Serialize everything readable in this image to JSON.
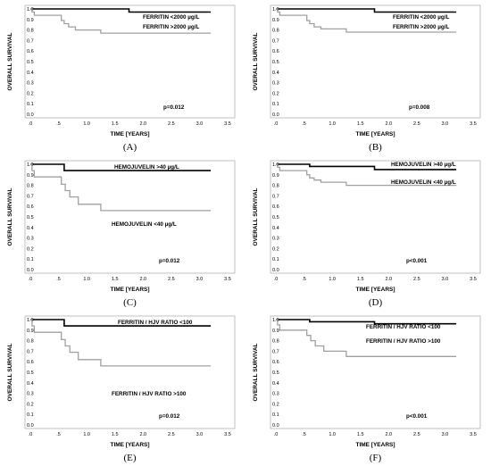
{
  "panels": [
    {
      "id": "A",
      "caption": "(A)",
      "p_value": "p=0.012"
    },
    {
      "id": "B",
      "caption": "(B)",
      "p_value": "p=0.008"
    },
    {
      "id": "C",
      "caption": "(C)",
      "p_value": "p=0.012"
    },
    {
      "id": "D",
      "caption": "(D)",
      "p_value": "p<0.001"
    },
    {
      "id": "E",
      "caption": "(E)",
      "p_value": "p=0.012"
    },
    {
      "id": "F",
      "caption": "(F)",
      "p_value": "p<0.001"
    }
  ],
  "colors": {
    "high_group": "#000000",
    "low_group": "#a0a0a0",
    "frame": "#999999"
  },
  "chart_data": [
    {
      "panel": "A",
      "type": "line",
      "xlabel": "TIME [YEARS]",
      "ylabel": "OVERALL SURVIVAL",
      "xlim": [
        0,
        3.5
      ],
      "ylim": [
        0,
        1.0
      ],
      "x_ticks": [
        ".0",
        ".5",
        "1.0",
        "1.5",
        "2.0",
        "2.5",
        "3.0",
        "3.5"
      ],
      "y_ticks": [
        "0.0",
        "0.1",
        "0.2",
        "0.3",
        "0.4",
        "0.5",
        "0.6",
        "0.7",
        "0.8",
        "0.9",
        "1.0"
      ],
      "series": [
        {
          "name": "FERRITIN <2000 µg/L",
          "color": "#000000",
          "steps": [
            [
              0,
              1.0
            ],
            [
              1.75,
              0.97
            ],
            [
              3.2,
              0.97
            ]
          ]
        },
        {
          "name": "FERRITIN >2000 µg/L",
          "color": "#a0a0a0",
          "steps": [
            [
              0,
              1.0
            ],
            [
              0.03,
              0.97
            ],
            [
              0.07,
              0.94
            ],
            [
              0.55,
              0.89
            ],
            [
              0.6,
              0.86
            ],
            [
              0.68,
              0.83
            ],
            [
              0.8,
              0.8
            ],
            [
              1.25,
              0.77
            ],
            [
              3.2,
              0.77
            ]
          ]
        }
      ]
    },
    {
      "panel": "B",
      "type": "line",
      "xlabel": "TIME [YEARS]",
      "ylabel": "OVERALL SURVIVAL",
      "xlim": [
        0,
        3.5
      ],
      "ylim": [
        0,
        1.0
      ],
      "x_ticks": [
        ".0",
        ".5",
        "1.0",
        "1.5",
        "2.0",
        "2.5",
        "3.0",
        "3.5"
      ],
      "y_ticks": [
        "0.0",
        "0.1",
        "0.2",
        "0.3",
        "0.4",
        "0.5",
        "0.6",
        "0.7",
        "0.8",
        "0.9",
        "1.0"
      ],
      "series": [
        {
          "name": "FERRITIN <2000 µg/L",
          "color": "#000000",
          "steps": [
            [
              0,
              1.0
            ],
            [
              1.75,
              0.97
            ],
            [
              3.2,
              0.97
            ]
          ]
        },
        {
          "name": "FERRITIN >2000 µg/L",
          "color": "#a0a0a0",
          "steps": [
            [
              0,
              1.0
            ],
            [
              0.03,
              0.97
            ],
            [
              0.07,
              0.94
            ],
            [
              0.55,
              0.89
            ],
            [
              0.6,
              0.86
            ],
            [
              0.68,
              0.83
            ],
            [
              0.8,
              0.81
            ],
            [
              1.25,
              0.78
            ],
            [
              3.2,
              0.78
            ]
          ]
        }
      ]
    },
    {
      "panel": "C",
      "type": "line",
      "xlabel": "TIME [YEARS]",
      "ylabel": "OVERALL SURVIVAL",
      "xlim": [
        0,
        3.5
      ],
      "ylim": [
        0,
        1.0
      ],
      "x_ticks": [
        ".0",
        ".5",
        "1.0",
        "1.5",
        "2.0",
        "2.5",
        "3.0",
        "3.5"
      ],
      "y_ticks": [
        "0.0",
        "0.1",
        "0.2",
        "0.3",
        "0.4",
        "0.5",
        "0.6",
        "0.7",
        "0.8",
        "0.9",
        "1.0"
      ],
      "series": [
        {
          "name": "HEMOJUVELIN >40 µg/L",
          "color": "#000000",
          "steps": [
            [
              0,
              1.0
            ],
            [
              0.6,
              0.94
            ],
            [
              3.2,
              0.94
            ]
          ]
        },
        {
          "name": "HEMOJUVELIN <40 µg/L",
          "color": "#a0a0a0",
          "steps": [
            [
              0,
              1.0
            ],
            [
              0.03,
              0.94
            ],
            [
              0.07,
              0.88
            ],
            [
              0.55,
              0.81
            ],
            [
              0.62,
              0.75
            ],
            [
              0.7,
              0.69
            ],
            [
              0.85,
              0.62
            ],
            [
              1.25,
              0.56
            ],
            [
              3.2,
              0.56
            ]
          ]
        }
      ]
    },
    {
      "panel": "D",
      "type": "line",
      "xlabel": "TIME [YEARS]",
      "ylabel": "OVERALL SURVIVAL",
      "xlim": [
        0,
        3.5
      ],
      "ylim": [
        0,
        1.0
      ],
      "x_ticks": [
        ".0",
        ".5",
        "1.0",
        "1.5",
        "2.0",
        "2.5",
        "3.0",
        "3.5"
      ],
      "y_ticks": [
        "0.0",
        "0.1",
        "0.2",
        "0.3",
        "0.4",
        "0.5",
        "0.6",
        "0.7",
        "0.8",
        "0.9",
        "1.0"
      ],
      "series": [
        {
          "name": "HEMOJUVELIN >40 µg/L",
          "color": "#000000",
          "steps": [
            [
              0,
              1.0
            ],
            [
              0.6,
              0.98
            ],
            [
              1.75,
              0.95
            ],
            [
              3.2,
              0.95
            ]
          ]
        },
        {
          "name": "HEMOJUVELIN <40 µg/L",
          "color": "#a0a0a0",
          "steps": [
            [
              0,
              1.0
            ],
            [
              0.03,
              0.97
            ],
            [
              0.07,
              0.94
            ],
            [
              0.55,
              0.9
            ],
            [
              0.6,
              0.87
            ],
            [
              0.68,
              0.85
            ],
            [
              0.8,
              0.83
            ],
            [
              1.25,
              0.8
            ],
            [
              3.2,
              0.8
            ]
          ]
        }
      ]
    },
    {
      "panel": "E",
      "type": "line",
      "xlabel": "TIME [YEARS]",
      "ylabel": "OVERALL SURVIVAL",
      "xlim": [
        0,
        3.5
      ],
      "ylim": [
        0,
        1.0
      ],
      "x_ticks": [
        ".0",
        ".5",
        "1.0",
        "1.5",
        "2.0",
        "2.5",
        "3.0",
        "3.5"
      ],
      "y_ticks": [
        "0.0",
        "0.1",
        "0.2",
        "0.3",
        "0.4",
        "0.5",
        "0.6",
        "0.7",
        "0.8",
        "0.9",
        "1.0"
      ],
      "series": [
        {
          "name": "FERRITIN / HJV RATIO <100",
          "color": "#000000",
          "steps": [
            [
              0,
              1.0
            ],
            [
              0.6,
              0.94
            ],
            [
              3.2,
              0.94
            ]
          ]
        },
        {
          "name": "FERRITIN / HJV RATIO >100",
          "color": "#a0a0a0",
          "steps": [
            [
              0,
              1.0
            ],
            [
              0.03,
              0.94
            ],
            [
              0.07,
              0.88
            ],
            [
              0.55,
              0.81
            ],
            [
              0.62,
              0.75
            ],
            [
              0.7,
              0.69
            ],
            [
              0.85,
              0.62
            ],
            [
              1.25,
              0.56
            ],
            [
              3.2,
              0.56
            ]
          ]
        }
      ]
    },
    {
      "panel": "F",
      "type": "line",
      "xlabel": "TIME [YEARS]",
      "ylabel": "OVERALL SURVIVAL",
      "xlim": [
        0,
        3.5
      ],
      "ylim": [
        0,
        1.0
      ],
      "x_ticks": [
        ".0",
        ".5",
        "1.0",
        "1.5",
        "2.0",
        "2.5",
        "3.0",
        "3.5"
      ],
      "y_ticks": [
        "0.0",
        "0.1",
        "0.2",
        "0.3",
        "0.4",
        "0.5",
        "0.6",
        "0.7",
        "0.8",
        "0.9",
        "1.0"
      ],
      "series": [
        {
          "name": "FERRITIN / HJV RATIO <100",
          "color": "#000000",
          "steps": [
            [
              0,
              1.0
            ],
            [
              0.6,
              0.98
            ],
            [
              1.75,
              0.96
            ],
            [
              3.2,
              0.96
            ]
          ]
        },
        {
          "name": "FERRITIN / HJV RATIO >100",
          "color": "#a0a0a0",
          "steps": [
            [
              0,
              1.0
            ],
            [
              0.03,
              0.95
            ],
            [
              0.07,
              0.9
            ],
            [
              0.55,
              0.85
            ],
            [
              0.62,
              0.8
            ],
            [
              0.7,
              0.75
            ],
            [
              0.85,
              0.7
            ],
            [
              1.25,
              0.65
            ],
            [
              3.2,
              0.65
            ]
          ]
        }
      ]
    }
  ]
}
